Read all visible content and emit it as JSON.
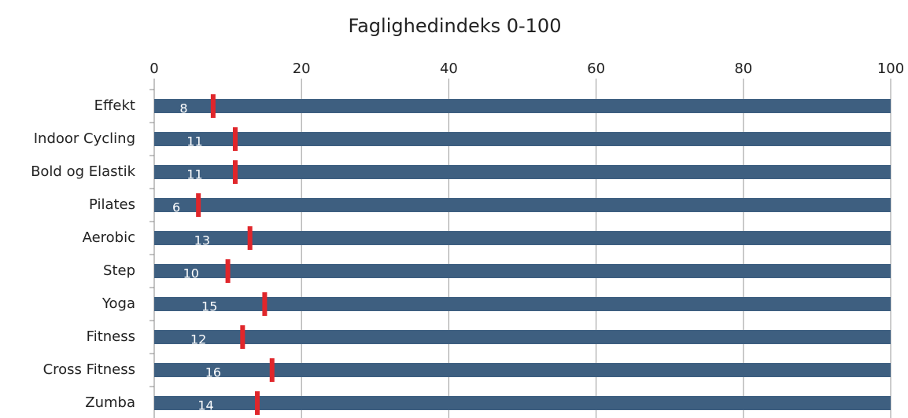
{
  "chart_data": {
    "type": "bar",
    "title": "Faglighedindeks 0-100",
    "categories": [
      "Effekt",
      "Indoor Cycling",
      "Bold og Elastik",
      "Pilates",
      "Aerobic",
      "Step",
      "Yoga",
      "Fitness",
      "Cross Fitness",
      "Zumba"
    ],
    "series": [
      {
        "color": "#3e5f80",
        "values": [
          100,
          100,
          100,
          100,
          100,
          100,
          100,
          100,
          100,
          100
        ]
      },
      {
        "color": "#e0262b",
        "values": [
          8,
          11,
          11,
          6,
          13,
          10,
          15,
          12,
          16,
          14
        ]
      }
    ],
    "xlim": [
      0,
      100
    ],
    "xticks": [
      0,
      20,
      40,
      60,
      80,
      100
    ],
    "grid": true
  }
}
